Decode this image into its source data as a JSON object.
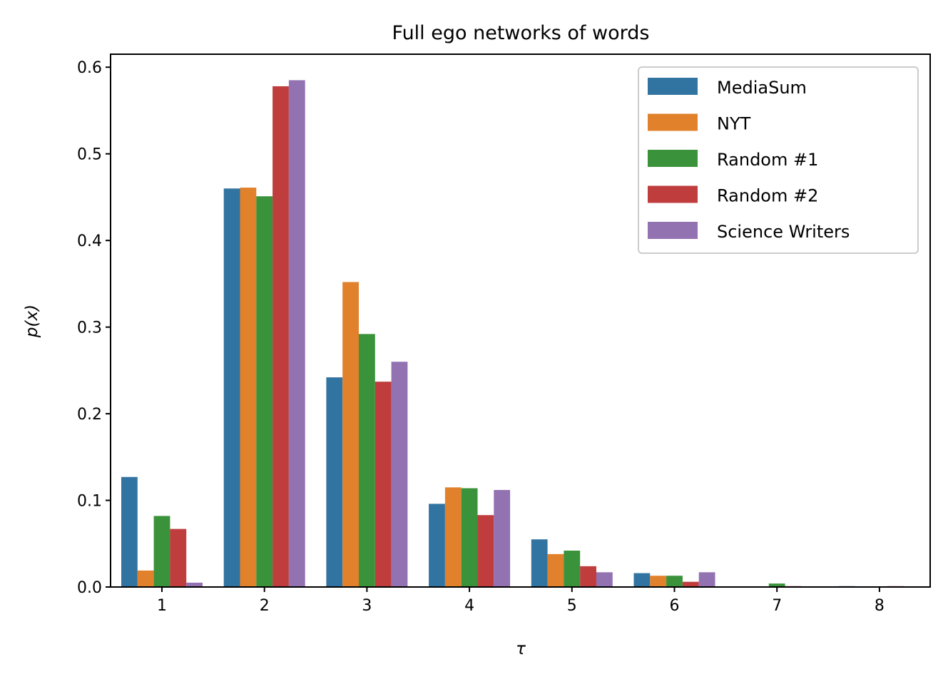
{
  "chart_data": {
    "type": "bar",
    "title": "Full ego networks of words",
    "xlabel": "τ",
    "ylabel": "p(x)",
    "categories": [
      "1",
      "2",
      "3",
      "4",
      "5",
      "6",
      "7",
      "8"
    ],
    "ylim": [
      0,
      0.615
    ],
    "yticks": [
      0.0,
      0.1,
      0.2,
      0.3,
      0.4,
      0.5,
      0.6
    ],
    "ytick_labels": [
      "0.0",
      "0.1",
      "0.2",
      "0.3",
      "0.4",
      "0.5",
      "0.6"
    ],
    "grid": false,
    "legend_position": "top-right",
    "series": [
      {
        "name": "MediaSum",
        "color": "#3274a1",
        "values": [
          0.127,
          0.46,
          0.242,
          0.096,
          0.055,
          0.016,
          0.0,
          0.001
        ]
      },
      {
        "name": "NYT",
        "color": "#e1812c",
        "values": [
          0.019,
          0.461,
          0.352,
          0.115,
          0.038,
          0.013,
          0.0,
          0.0
        ]
      },
      {
        "name": "Random #1",
        "color": "#3a923a",
        "values": [
          0.082,
          0.451,
          0.292,
          0.114,
          0.042,
          0.013,
          0.004,
          0.0
        ]
      },
      {
        "name": "Random #2",
        "color": "#c03d3e",
        "values": [
          0.067,
          0.578,
          0.237,
          0.083,
          0.024,
          0.006,
          0.001,
          0.001
        ]
      },
      {
        "name": "Science Writers",
        "color": "#9372b2",
        "values": [
          0.005,
          0.585,
          0.26,
          0.112,
          0.017,
          0.017,
          0.0,
          0.0
        ]
      }
    ]
  }
}
